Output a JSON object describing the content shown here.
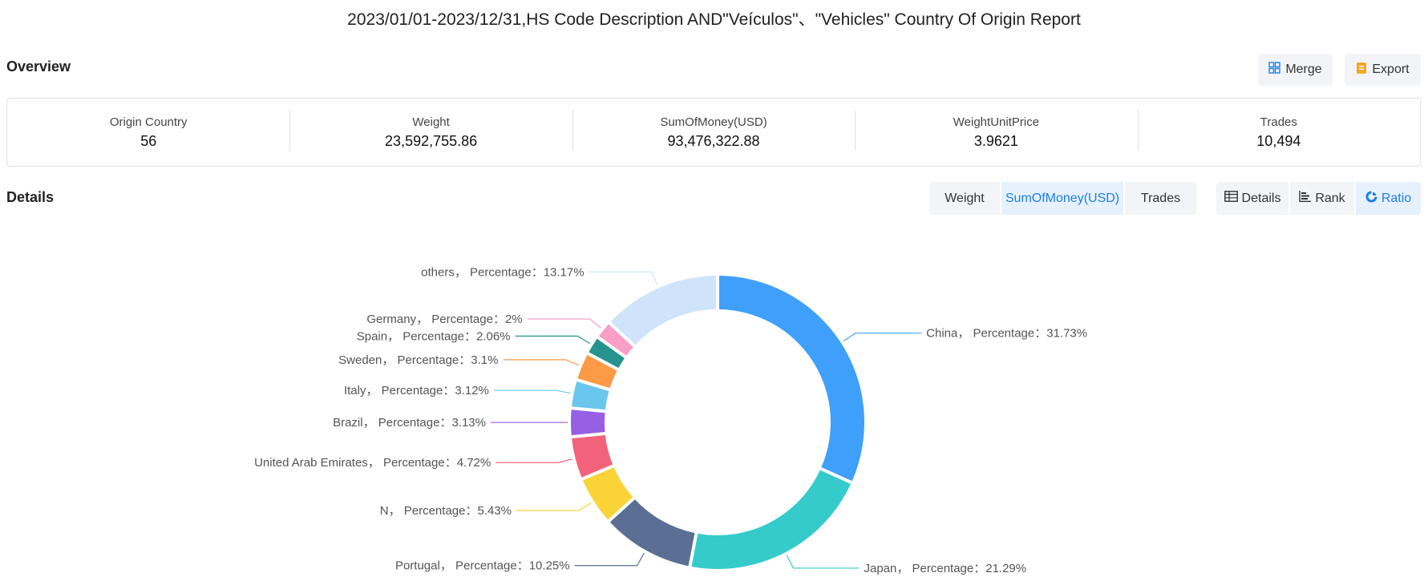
{
  "report_title": "2023/01/01-2023/12/31,HS Code Description AND\"Veículos\"、\"Vehicles\" Country Of Origin Report",
  "overview": {
    "heading": "Overview",
    "merge_label": "Merge",
    "export_label": "Export",
    "stats": [
      {
        "label": "Origin Country",
        "value": "56"
      },
      {
        "label": "Weight",
        "value": "23,592,755.86"
      },
      {
        "label": "SumOfMoney(USD)",
        "value": "93,476,322.88"
      },
      {
        "label": "WeightUnitPrice",
        "value": "3.9621"
      },
      {
        "label": "Trades",
        "value": "10,494"
      }
    ]
  },
  "details": {
    "heading": "Details",
    "metric_tabs": [
      {
        "label": "Weight",
        "active": false
      },
      {
        "label": "SumOfMoney(USD)",
        "active": true
      },
      {
        "label": "Trades",
        "active": false
      }
    ],
    "view_tabs": [
      {
        "label": "Details",
        "icon": "table-icon",
        "active": false
      },
      {
        "label": "Rank",
        "icon": "bar-rank-icon",
        "active": false
      },
      {
        "label": "Ratio",
        "icon": "pie-ratio-icon",
        "active": true
      }
    ]
  },
  "colors": {
    "accent": "#1d7fe6",
    "tab_bg": "#f2f4f7",
    "active_tab_bg": "#e6f1fd"
  },
  "chart_data": {
    "type": "pie",
    "variant": "donut",
    "label_format": "{name}， Percentage：{value}%",
    "slices": [
      {
        "name": "China",
        "value": 31.73,
        "color": "#3ea0fa"
      },
      {
        "name": "Japan",
        "value": 21.29,
        "color": "#36cbcb"
      },
      {
        "name": "Portugal",
        "value": 10.25,
        "color": "#5b6f94"
      },
      {
        "name": "N",
        "value": 5.43,
        "color": "#fad337"
      },
      {
        "name": "United Arab Emirates",
        "value": 4.72,
        "color": "#f2637b"
      },
      {
        "name": "Brazil",
        "value": 3.13,
        "color": "#975fe4"
      },
      {
        "name": "Italy",
        "value": 3.12,
        "color": "#6ac6ed"
      },
      {
        "name": "Sweden",
        "value": 3.1,
        "color": "#fd9a45"
      },
      {
        "name": "Spain",
        "value": 2.06,
        "color": "#27938f"
      },
      {
        "name": "Germany",
        "value": 2,
        "color": "#f99ec6"
      },
      {
        "name": "others",
        "value": 13.17,
        "color": "#cfe4fb"
      }
    ]
  }
}
